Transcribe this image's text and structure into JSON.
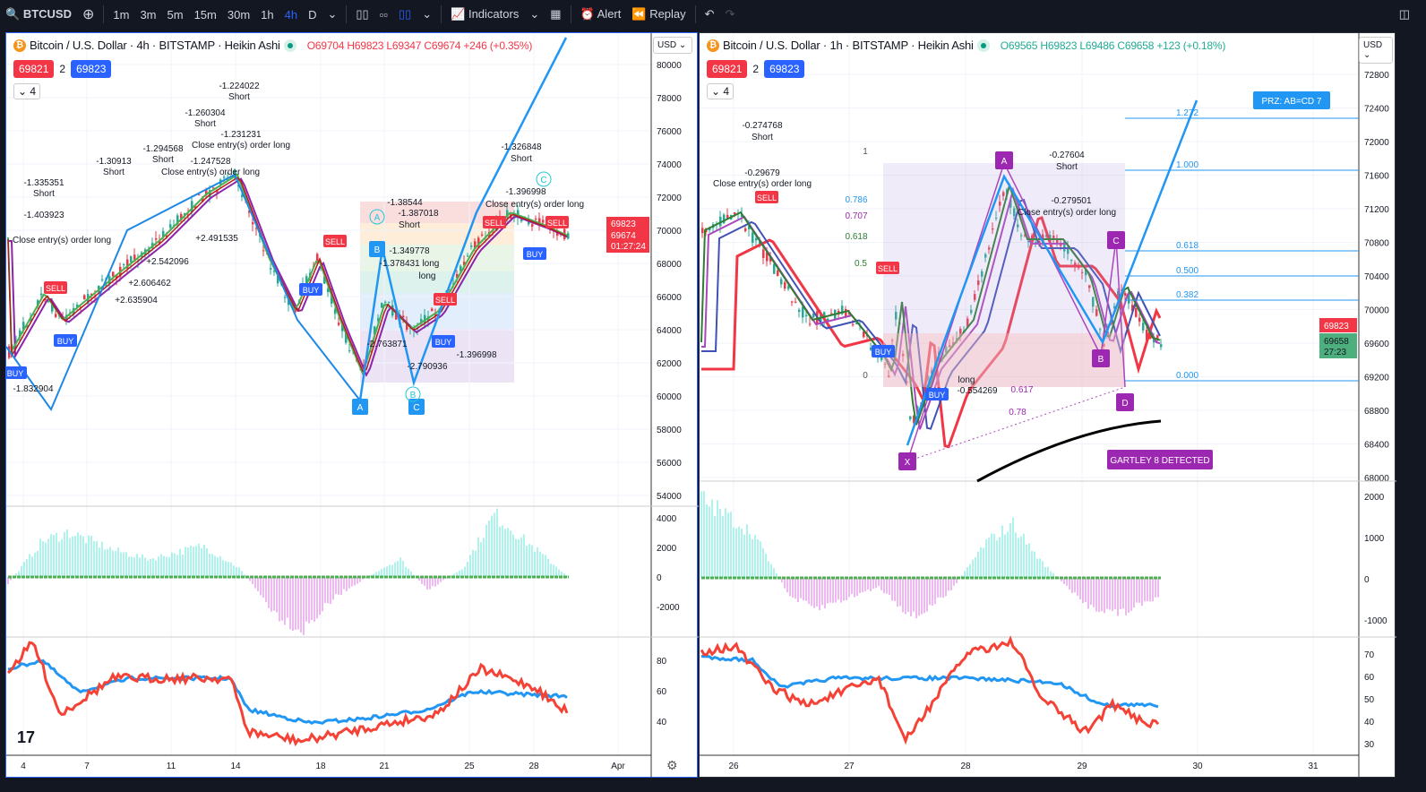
{
  "toolbar": {
    "symbol": "BTCUSD",
    "intervals": [
      "1m",
      "3m",
      "5m",
      "15m",
      "30m",
      "1h",
      "4h",
      "D"
    ],
    "active_interval": "4h",
    "indicators": "Indicators",
    "alert": "Alert",
    "replay": "Replay"
  },
  "left": {
    "title": "Bitcoin / U.S. Dollar · 4h · BITSTAMP · Heikin Ashi",
    "ohlc": {
      "o": "O69704",
      "h": "H69823",
      "l": "L69347",
      "c": "C69674",
      "chg": "+246 (+0.35%)"
    },
    "sell_price": "69821",
    "spread": "2",
    "buy_price": "69823",
    "collapse": "4",
    "currency": "USD",
    "axis_main": [
      "80000",
      "78000",
      "76000",
      "74000",
      "72000",
      "70000",
      "68000",
      "66000",
      "64000",
      "62000",
      "60000",
      "58000",
      "56000",
      "54000"
    ],
    "axis_osc": [
      "4000",
      "2000",
      "0",
      "-2000"
    ],
    "axis_rsi": [
      "80",
      "60",
      "40"
    ],
    "price_tags": {
      "high": "69823",
      "last": "69674",
      "countdown": "01:27:24"
    },
    "time_axis": [
      "4",
      "7",
      "11",
      "14",
      "18",
      "21",
      "25",
      "28",
      "Apr"
    ],
    "annotations": [
      "-1.224022",
      "Short",
      "-1.260304",
      "Short",
      "-1.231231",
      "Close entry(s) order long",
      "-1.30913",
      "Short",
      "-1.294568",
      "Short",
      "-1.247528",
      "Close entry(s) order long",
      "-1.335351",
      "Short",
      "-1.403923",
      "Close entry(s) order long",
      "-1.326848",
      "Short",
      "-1.396998",
      "Close entry(s) order long",
      "-1.38544",
      "-1.387018",
      "Short",
      "-1.349778",
      "-1.378431 long",
      "long",
      "+2.606462",
      "+2.635904",
      "+2.542096",
      "+2.491535",
      "-1.832904",
      "-2.763871",
      "-2.790936",
      "-1.396998"
    ],
    "pattern_labels": [
      "A",
      "B",
      "C",
      "A",
      "B",
      "C"
    ],
    "signals": [
      "SELL",
      "BUY",
      "SELL",
      "BUY",
      "SELL",
      "BUY",
      "BUY",
      "SELL",
      "BUY",
      "SELL"
    ]
  },
  "right": {
    "title": "Bitcoin / U.S. Dollar · 1h · BITSTAMP · Heikin Ashi",
    "ohlc": {
      "o": "O69565",
      "h": "H69823",
      "l": "L69486",
      "c": "C69658",
      "chg": "+123 (+0.18%)"
    },
    "sell_price": "69821",
    "spread": "2",
    "buy_price": "69823",
    "collapse": "4",
    "currency": "USD",
    "axis_main": [
      "72800",
      "72400",
      "72000",
      "71600",
      "71200",
      "70800",
      "70400",
      "70000",
      "69600",
      "69200",
      "68800",
      "68400",
      "68000"
    ],
    "axis_osc": [
      "2000",
      "1000",
      "0",
      "-1000"
    ],
    "axis_rsi": [
      "70",
      "60",
      "50",
      "40",
      "30"
    ],
    "price_tags": {
      "high": "69823",
      "last": "69658",
      "countdown": "27:23"
    },
    "time_axis": [
      "26",
      "27",
      "28",
      "29",
      "30",
      "31"
    ],
    "fib_levels": [
      "1.272",
      "1.000",
      "0.618",
      "0.500",
      "0.382",
      "0.000"
    ],
    "fib_left": [
      "1",
      "0.786",
      "0.707",
      "0.618",
      "0.5",
      "0"
    ],
    "prz": "PRZ: AB=CD 7",
    "gartley": "GARTLEY 8 DETECTED",
    "pattern_points": [
      "X",
      "A",
      "B",
      "C",
      "D"
    ],
    "annotations": [
      "-0.274768",
      "Short",
      "-0.29679",
      "Close entry(s) order long",
      "-0.27604",
      "Short",
      "-0.279501",
      "Close entry(s) order long",
      "long",
      "-0.554269",
      "0.617",
      "0.78"
    ],
    "signals": [
      "SELL",
      "SELL",
      "BUY",
      "BUY"
    ]
  },
  "colors": {
    "accent": "#2962ff",
    "up": "#22ab94",
    "down": "#f23645",
    "bg": "#131722"
  }
}
